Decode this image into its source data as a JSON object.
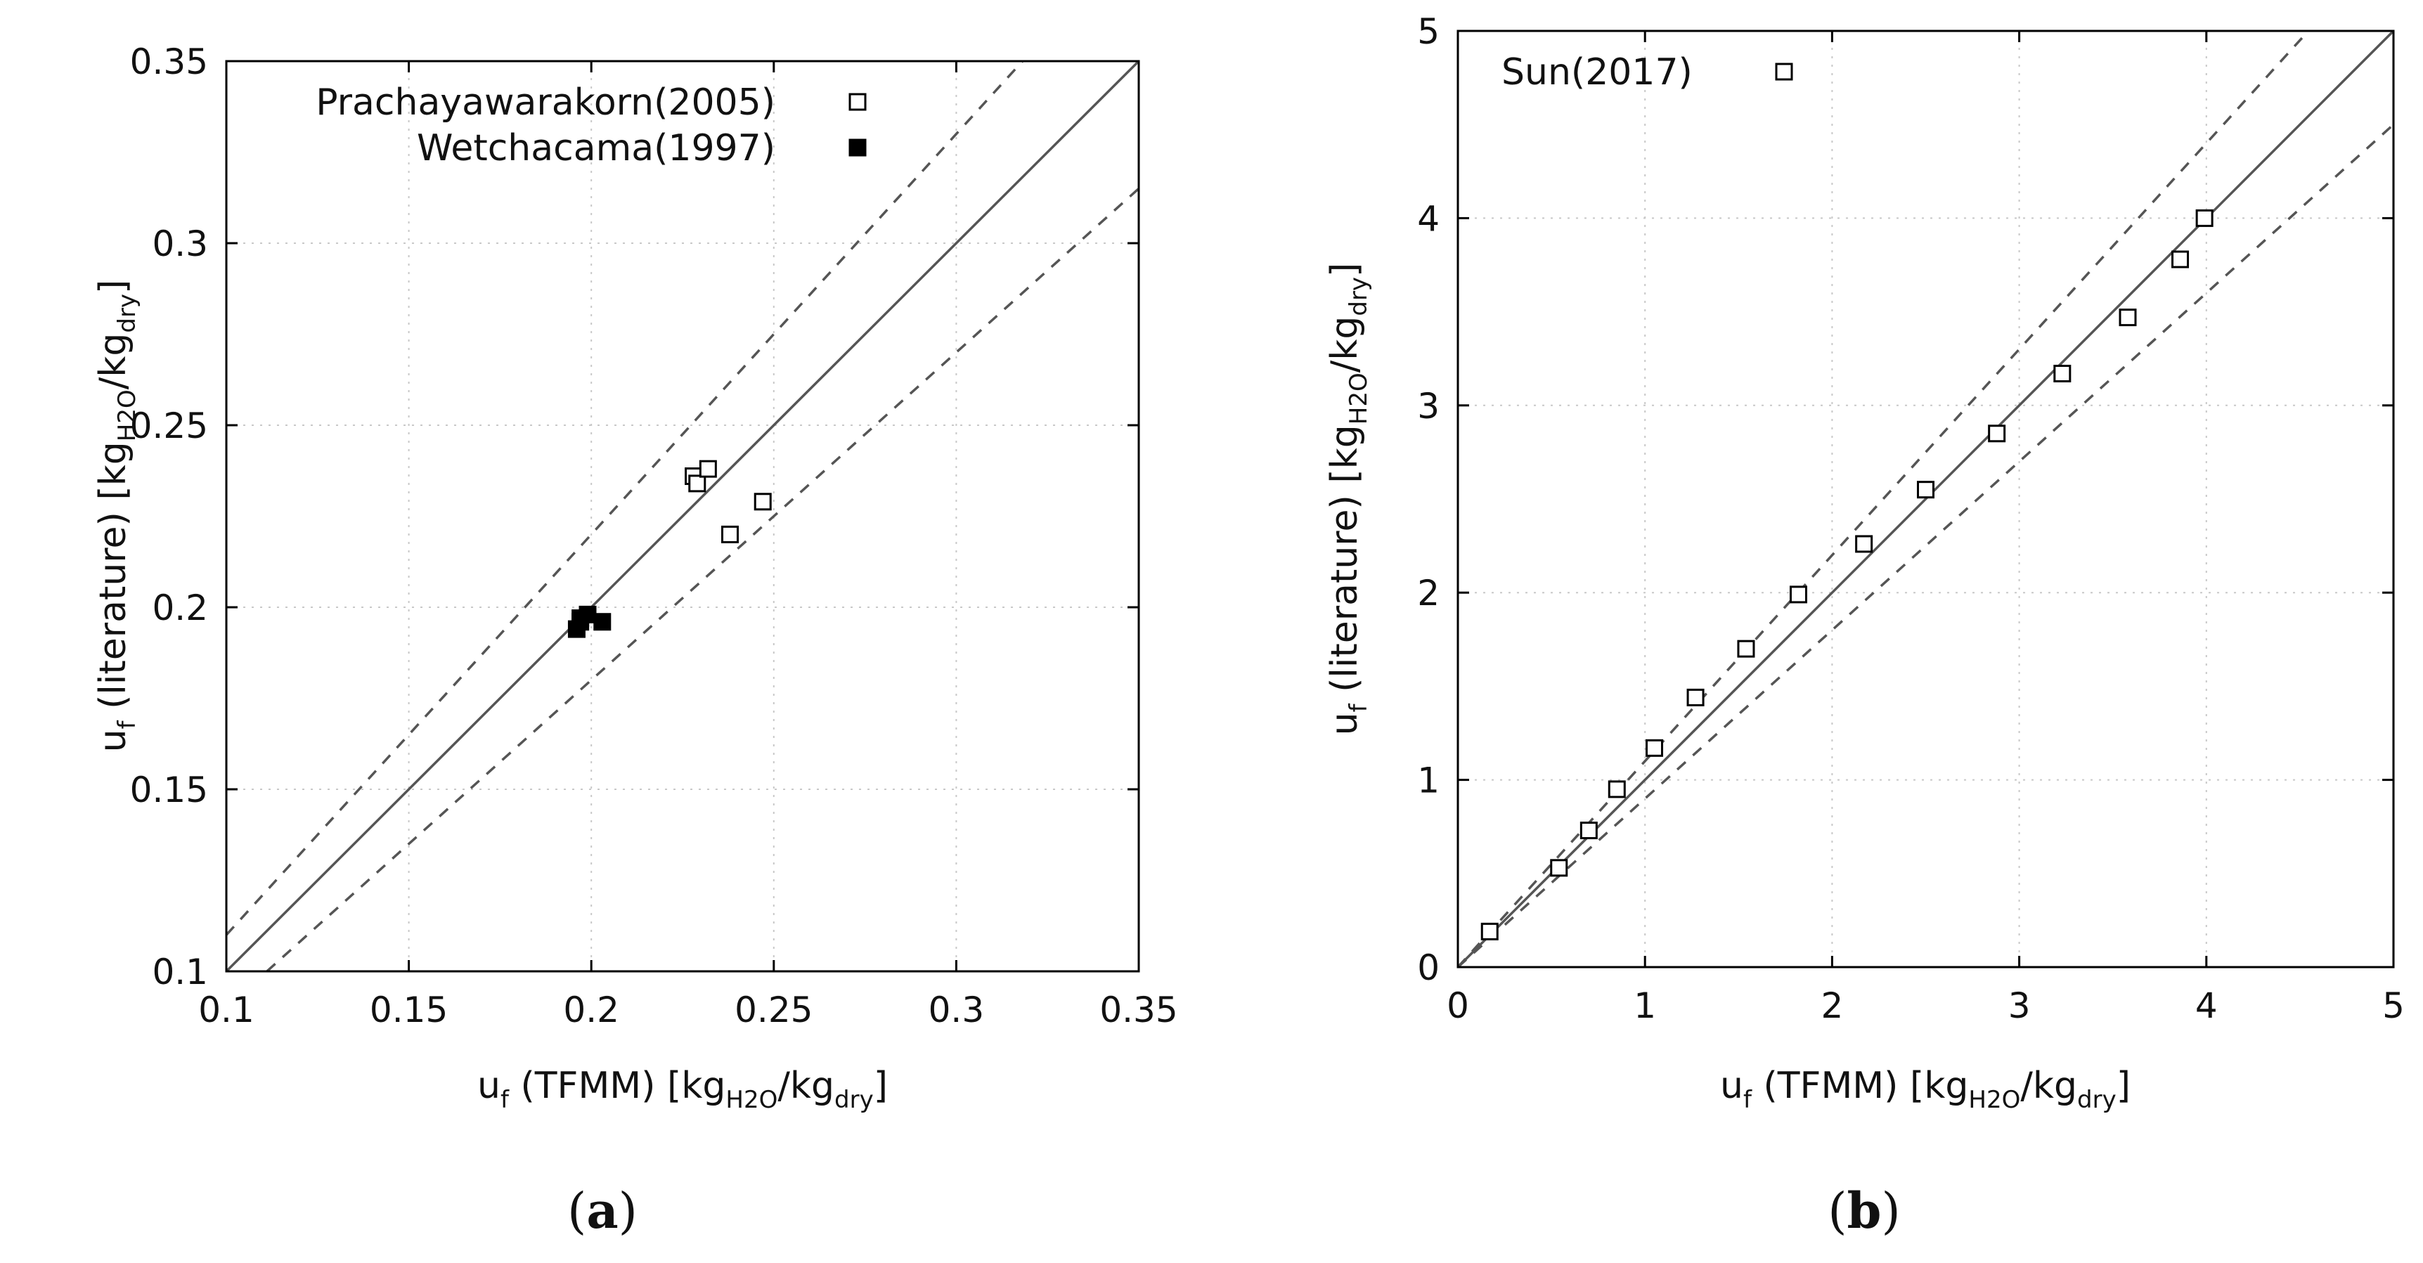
{
  "chart_data": [
    {
      "type": "scatter",
      "panel_label": "a",
      "xlim": [
        0.1,
        0.35
      ],
      "ylim": [
        0.1,
        0.35
      ],
      "xticks": [
        "0.1",
        "0.15",
        "0.2",
        "0.25",
        "0.3",
        "0.35"
      ],
      "yticks": [
        "0.1",
        "0.15",
        "0.2",
        "0.25",
        "0.3",
        "0.35"
      ],
      "xlabel": {
        "pre": "u",
        "sub1": "f",
        "mid": " (TFMM) [kg",
        "sub2": "H2O",
        "slash": "/kg",
        "sub3": "dry",
        "post": "]"
      },
      "ylabel": {
        "pre": "u",
        "sub1": "f",
        "mid": " (literature) [kg",
        "sub2": "H2O",
        "slash": "/kg",
        "sub3": "dry",
        "post": "]"
      },
      "grid": true,
      "legend_position": "top-right",
      "reference_lines": [
        {
          "style": "solid",
          "factor": 1.0
        },
        {
          "style": "dashed",
          "factor": 1.1
        },
        {
          "style": "dashed",
          "factor": 0.9
        }
      ],
      "series": [
        {
          "name": "Prachayawarakorn(2005)",
          "marker": "open-square",
          "points": [
            [
              0.228,
              0.236
            ],
            [
              0.229,
              0.234
            ],
            [
              0.232,
              0.238
            ],
            [
              0.238,
              0.22
            ],
            [
              0.247,
              0.229
            ]
          ]
        },
        {
          "name": "Wetchacama(1997)",
          "marker": "filled-square",
          "points": [
            [
              0.196,
              0.194
            ],
            [
              0.197,
              0.196
            ],
            [
              0.197,
              0.197
            ],
            [
              0.199,
              0.198
            ],
            [
              0.203,
              0.196
            ]
          ]
        }
      ]
    },
    {
      "type": "scatter",
      "panel_label": "b",
      "xlim": [
        0,
        5
      ],
      "ylim": [
        0,
        5
      ],
      "xticks": [
        "0",
        "1",
        "2",
        "3",
        "4",
        "5"
      ],
      "yticks": [
        "0",
        "1",
        "2",
        "3",
        "4",
        "5"
      ],
      "xlabel": {
        "pre": "u",
        "sub1": "f",
        "mid": " (TFMM) [kg",
        "sub2": "H2O",
        "slash": "/kg",
        "sub3": "dry",
        "post": "]"
      },
      "ylabel": {
        "pre": "u",
        "sub1": "f",
        "mid": " (literature) [kg",
        "sub2": "H2O",
        "slash": "/kg",
        "sub3": "dry",
        "post": "]"
      },
      "grid": true,
      "legend_position": "top-left",
      "reference_lines": [
        {
          "style": "solid",
          "factor": 1.0
        },
        {
          "style": "dashed",
          "factor": 1.1
        },
        {
          "style": "dashed",
          "factor": 0.9
        }
      ],
      "series": [
        {
          "name": "Sun(2017)",
          "marker": "open-square",
          "points": [
            [
              0.17,
              0.19
            ],
            [
              0.54,
              0.53
            ],
            [
              0.7,
              0.73
            ],
            [
              0.85,
              0.95
            ],
            [
              1.05,
              1.17
            ],
            [
              1.27,
              1.44
            ],
            [
              1.54,
              1.7
            ],
            [
              1.82,
              1.99
            ],
            [
              2.17,
              2.26
            ],
            [
              2.5,
              2.55
            ],
            [
              2.88,
              2.85
            ],
            [
              3.23,
              3.17
            ],
            [
              3.58,
              3.47
            ],
            [
              3.86,
              3.78
            ],
            [
              3.99,
              4.0
            ]
          ]
        }
      ]
    }
  ]
}
